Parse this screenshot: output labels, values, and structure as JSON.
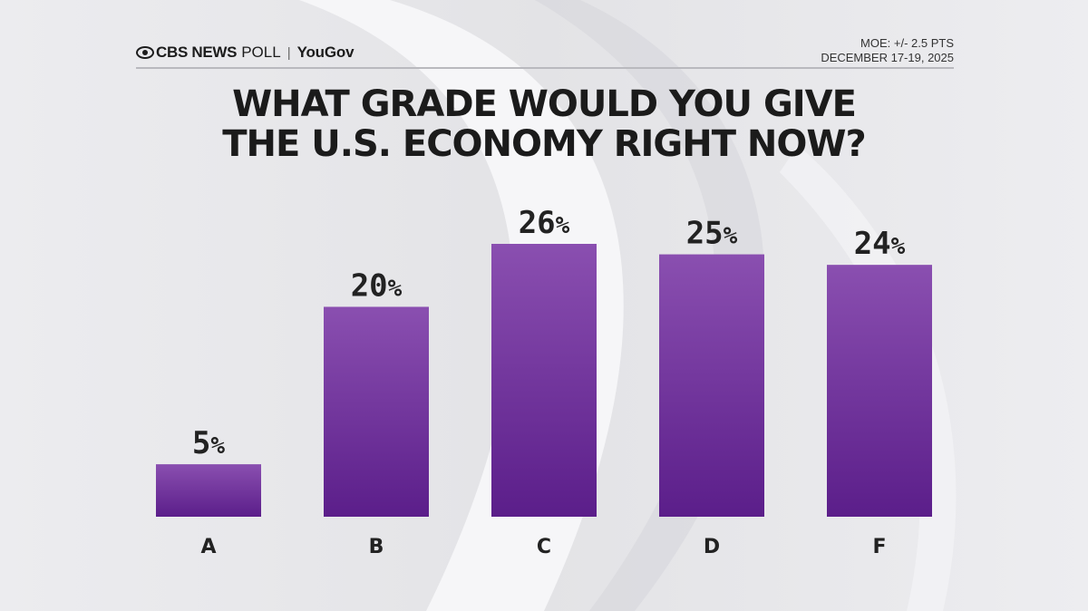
{
  "brand": {
    "network": "CBS NEWS",
    "poll": "POLL",
    "separator": "|",
    "partner": "YouGov"
  },
  "meta": {
    "moe": "MOE: +/- 2.5 PTS",
    "date": "DECEMBER 17-19, 2025"
  },
  "title_lines": [
    "WHAT GRADE WOULD YOU GIVE",
    "THE U.S. ECONOMY RIGHT NOW?"
  ],
  "colors": {
    "bar_top": "#8a4fb0",
    "bar_bottom": "#5b1e8a",
    "text": "#1b1b1b"
  },
  "chart_data": {
    "type": "bar",
    "title": "WHAT GRADE WOULD YOU GIVE THE U.S. ECONOMY RIGHT NOW?",
    "categories": [
      "A",
      "B",
      "C",
      "D",
      "F"
    ],
    "values": [
      5,
      20,
      26,
      25,
      24
    ],
    "value_suffix": "%",
    "ylim": [
      0,
      26
    ],
    "grid": false,
    "legend": "none"
  }
}
